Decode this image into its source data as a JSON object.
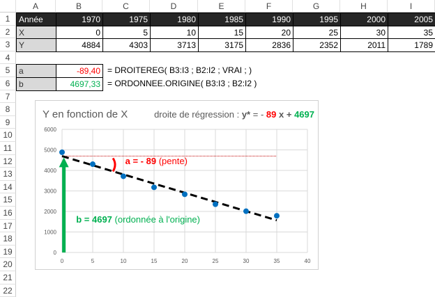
{
  "columns": [
    "A",
    "B",
    "C",
    "D",
    "E",
    "F",
    "G",
    "H",
    "I"
  ],
  "rows": [
    "1",
    "2",
    "3",
    "4",
    "5",
    "6",
    "7",
    "8",
    "9",
    "10",
    "11",
    "12",
    "13",
    "14",
    "15",
    "16",
    "17",
    "18",
    "19",
    "20",
    "21",
    "22"
  ],
  "table": {
    "row1": [
      "Année",
      "1970",
      "1975",
      "1980",
      "1985",
      "1990",
      "1995",
      "2000",
      "2005"
    ],
    "row2": [
      "X",
      "0",
      "5",
      "10",
      "15",
      "20",
      "25",
      "30",
      "35"
    ],
    "row3": [
      "Y",
      "4884",
      "4303",
      "3713",
      "3175",
      "2836",
      "2352",
      "2011",
      "1789"
    ]
  },
  "results": {
    "a_label": "a",
    "a_value": "-89,40",
    "a_formula": "= DROITEREG( B3:I3 ; B2:I2 ; VRAI ; )",
    "b_label": "b",
    "b_value": "4697,33",
    "b_formula": "= ORDONNEE.ORIGINE( B3:I3 ; B2:I2 )"
  },
  "colors": {
    "a": "#ff0000",
    "b": "#00b050",
    "points": "#0070c0",
    "header_bg": "#262626"
  },
  "chart_data": {
    "type": "scatter",
    "title": "Y en fonction de X",
    "equation": {
      "prefix": "droite de régression :",
      "lhs": "y*",
      "eq": "= -",
      "a": "89",
      "x": "x +",
      "b": "4697"
    },
    "x": [
      0,
      5,
      10,
      15,
      20,
      25,
      30,
      35
    ],
    "y": [
      4884,
      4303,
      3713,
      3175,
      2836,
      2352,
      2011,
      1789
    ],
    "xlim": [
      0,
      40
    ],
    "ylim": [
      0,
      6000
    ],
    "xticks": [
      "0",
      "5",
      "10",
      "15",
      "20",
      "25",
      "30",
      "35",
      "40"
    ],
    "yticks": [
      "0",
      "1000",
      "2000",
      "3000",
      "4000",
      "5000",
      "6000"
    ],
    "grid": true,
    "trendline": {
      "slope": -89.4,
      "intercept": 4697.33,
      "x_range": [
        0,
        35
      ],
      "style": "dashed"
    },
    "annotations": {
      "a_bold": "a = - 89",
      "a_text": "(pente)",
      "b_bold": "b = 4697",
      "b_text": "(ordonnée à l'origine)"
    }
  }
}
